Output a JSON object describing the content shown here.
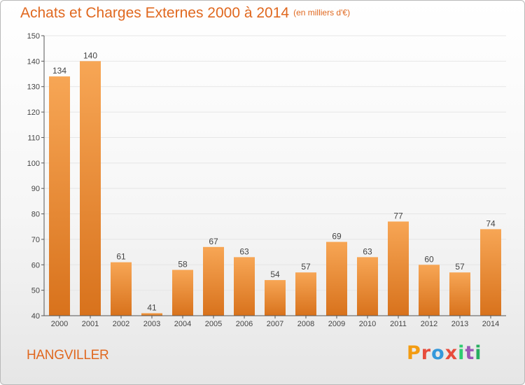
{
  "header": {
    "title": "Achats et Charges Externes 2000 à 2014",
    "unit": "(en milliers d'€)"
  },
  "footer": {
    "commune": "HANGVILLER",
    "brand": "Proxiti",
    "brand_colors": [
      "#f39c12",
      "#e74c3c",
      "#3498db",
      "#e74c3c",
      "#2ecc71",
      "#9b59b6",
      "#27ae60"
    ]
  },
  "colors": {
    "bar_top": "#f7a655",
    "bar_bottom": "#d8721c",
    "text_accent": "#e0681f",
    "axis": "#555555",
    "grid": "#e6e6e6"
  },
  "chart_data": {
    "type": "bar",
    "title": "Achats et Charges Externes 2000 à 2014",
    "unit": "(en milliers d'€)",
    "categories": [
      "2000",
      "2001",
      "2002",
      "2003",
      "2004",
      "2005",
      "2006",
      "2007",
      "2008",
      "2009",
      "2010",
      "2011",
      "2012",
      "2013",
      "2014"
    ],
    "values": [
      134,
      140,
      61,
      41,
      58,
      67,
      63,
      54,
      57,
      69,
      63,
      77,
      60,
      57,
      74
    ],
    "ylim": [
      40,
      150
    ],
    "yticks": [
      40,
      50,
      60,
      70,
      80,
      90,
      100,
      110,
      120,
      130,
      140,
      150
    ],
    "grid": true,
    "data_labels": true
  }
}
